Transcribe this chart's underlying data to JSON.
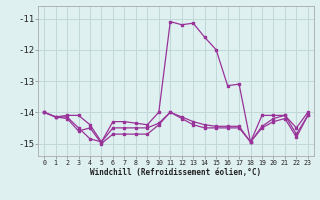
{
  "xlabel": "Windchill (Refroidissement éolien,°C)",
  "x": [
    0,
    1,
    2,
    3,
    4,
    5,
    6,
    7,
    8,
    9,
    10,
    11,
    12,
    13,
    14,
    15,
    16,
    17,
    18,
    19,
    20,
    21,
    22,
    23
  ],
  "line1": [
    -14.0,
    -14.15,
    -14.1,
    -14.1,
    -14.4,
    -14.95,
    -14.3,
    -14.3,
    -14.35,
    -14.4,
    -14.0,
    -11.1,
    -11.2,
    -11.15,
    -11.6,
    -12.0,
    -13.15,
    -13.1,
    -14.95,
    -14.1,
    -14.1,
    -14.1,
    -14.5,
    -14.0
  ],
  "line2": [
    -14.0,
    -14.15,
    -14.15,
    -14.5,
    -14.85,
    -14.95,
    -14.5,
    -14.5,
    -14.5,
    -14.5,
    -14.35,
    -14.0,
    -14.15,
    -14.3,
    -14.4,
    -14.45,
    -14.45,
    -14.45,
    -14.95,
    -14.45,
    -14.2,
    -14.1,
    -14.7,
    -14.1
  ],
  "line3": [
    -14.0,
    -14.15,
    -14.2,
    -14.6,
    -14.5,
    -15.0,
    -14.7,
    -14.7,
    -14.7,
    -14.7,
    -14.4,
    -14.0,
    -14.2,
    -14.4,
    -14.5,
    -14.5,
    -14.5,
    -14.5,
    -14.95,
    -14.5,
    -14.3,
    -14.2,
    -14.8,
    -14.1
  ],
  "color": "#993399",
  "bg_color": "#dff0f0",
  "grid_color": "#c0d8d8",
  "ylim": [
    -15.4,
    -10.6
  ],
  "yticks": [
    -15,
    -14,
    -13,
    -12,
    -11
  ],
  "xtick_labels": [
    "0",
    "1",
    "2",
    "3",
    "4",
    "5",
    "6",
    "7",
    "8",
    "9",
    "10",
    "11",
    "12",
    "13",
    "14",
    "15",
    "16",
    "17",
    "18",
    "19",
    "20",
    "21",
    "22",
    "23"
  ]
}
